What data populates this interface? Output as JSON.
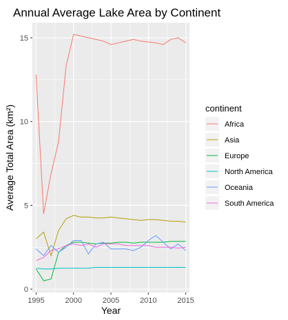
{
  "chart_data": {
    "type": "line",
    "title": "Annual Average Lake Area by Continent",
    "xlabel": "Year",
    "ylabel": "Average Total Area (km²)",
    "xlim": [
      1994.5,
      2015.5
    ],
    "ylim": [
      -0.2,
      15.9
    ],
    "x_ticks": [
      1995,
      2000,
      2005,
      2010,
      2015
    ],
    "y_ticks": [
      0,
      5,
      10,
      15
    ],
    "grid": true,
    "legend": {
      "title": "continent",
      "position": "right"
    },
    "x": [
      1995,
      1996,
      1997,
      1998,
      1999,
      2000,
      2001,
      2002,
      2003,
      2004,
      2005,
      2006,
      2007,
      2008,
      2009,
      2010,
      2011,
      2012,
      2013,
      2014,
      2015
    ],
    "series": [
      {
        "name": "Africa",
        "color": "#F8766D",
        "values": [
          12.8,
          4.5,
          6.9,
          8.8,
          13.3,
          15.2,
          15.1,
          15.0,
          14.9,
          14.8,
          14.6,
          14.7,
          14.8,
          14.9,
          14.8,
          14.75,
          14.7,
          14.6,
          14.9,
          15.0,
          14.7
        ]
      },
      {
        "name": "Asia",
        "color": "#B79F00",
        "values": [
          3.0,
          3.4,
          2.0,
          3.5,
          4.2,
          4.4,
          4.3,
          4.3,
          4.25,
          4.25,
          4.3,
          4.25,
          4.2,
          4.15,
          4.1,
          4.15,
          4.15,
          4.1,
          4.05,
          4.05,
          4.0
        ]
      },
      {
        "name": "Europe",
        "color": "#00BA38",
        "values": [
          1.2,
          0.5,
          0.6,
          2.2,
          2.6,
          2.8,
          2.8,
          2.75,
          2.7,
          2.75,
          2.75,
          2.8,
          2.8,
          2.75,
          2.8,
          2.8,
          2.8,
          2.8,
          2.85,
          2.85,
          2.85
        ]
      },
      {
        "name": "North America",
        "color": "#00BFC4",
        "values": [
          1.25,
          1.2,
          1.2,
          1.25,
          1.25,
          1.25,
          1.25,
          1.25,
          1.3,
          1.3,
          1.3,
          1.3,
          1.3,
          1.3,
          1.3,
          1.3,
          1.3,
          1.3,
          1.3,
          1.3,
          1.3
        ]
      },
      {
        "name": "Oceania",
        "color": "#619CFF",
        "values": [
          2.4,
          2.0,
          2.6,
          2.2,
          2.5,
          2.9,
          2.9,
          2.1,
          2.7,
          2.8,
          2.4,
          2.4,
          2.4,
          2.3,
          2.5,
          2.9,
          3.2,
          2.8,
          2.4,
          2.7,
          2.3
        ]
      },
      {
        "name": "South America",
        "color": "#F564E3",
        "values": [
          1.7,
          1.9,
          2.3,
          2.4,
          2.6,
          2.7,
          2.6,
          2.7,
          2.5,
          2.7,
          2.7,
          2.7,
          2.6,
          2.6,
          2.6,
          2.6,
          2.5,
          2.5,
          2.5,
          2.45,
          2.5
        ]
      }
    ]
  }
}
